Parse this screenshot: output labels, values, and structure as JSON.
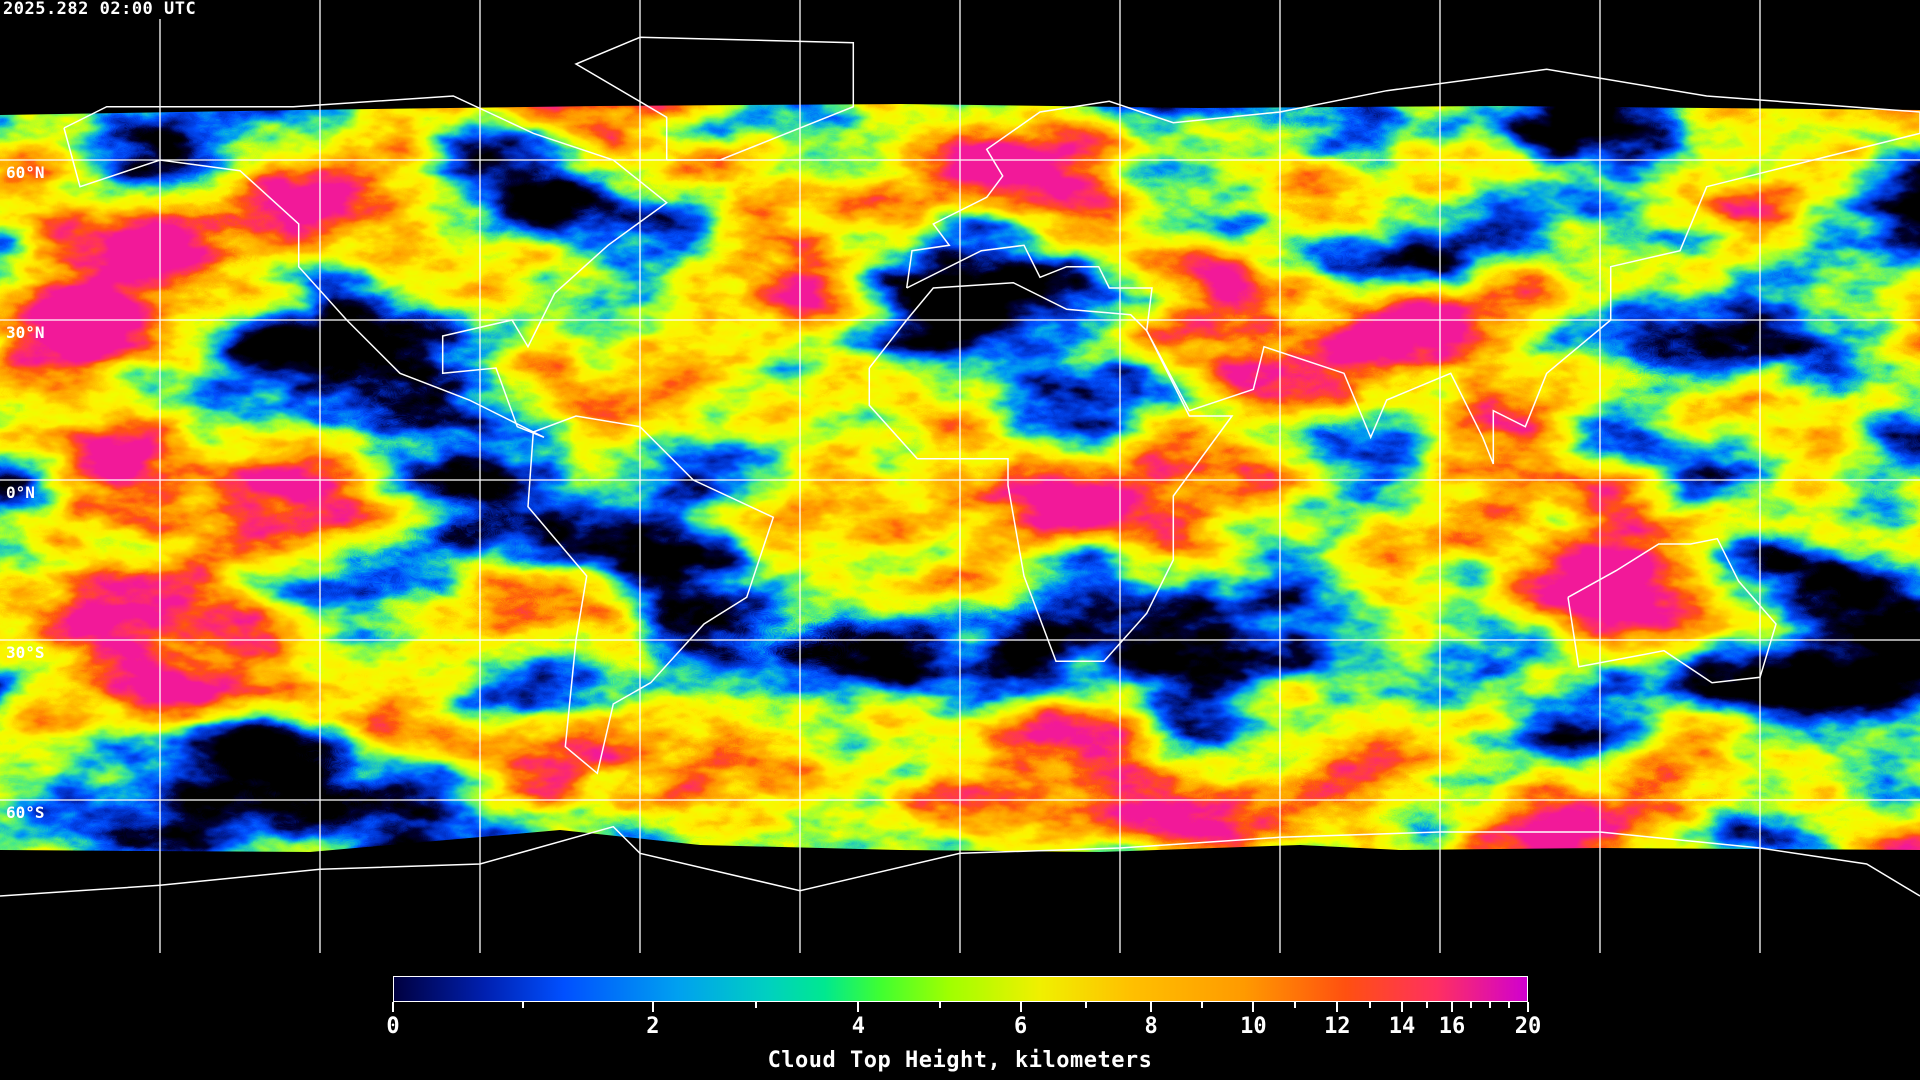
{
  "header": {
    "timestamp": "2025.282 02:00 UTC"
  },
  "map": {
    "projection": "equirectangular",
    "lon_range": [
      -180,
      180
    ],
    "lat_range": [
      -90,
      90
    ],
    "grid_spacing_degrees": 30,
    "gridline_color": "#ffffff",
    "coastline_color": "#ffffff",
    "no_data_color": "#000000",
    "lat_labels": [
      "60°N",
      "30°N",
      "0°N",
      "30°S",
      "60°S"
    ]
  },
  "colorbar": {
    "title": "Cloud Top Height, kilometers",
    "range": [
      0,
      20
    ],
    "major_ticks": [
      {
        "value": 0,
        "label": "0"
      },
      {
        "value": 2,
        "label": "2"
      },
      {
        "value": 4,
        "label": "4"
      },
      {
        "value": 6,
        "label": "6"
      },
      {
        "value": 8,
        "label": "8"
      },
      {
        "value": 10,
        "label": "10"
      },
      {
        "value": 12,
        "label": "12"
      },
      {
        "value": 14,
        "label": "14"
      },
      {
        "value": 16,
        "label": "16"
      },
      {
        "value": 20,
        "label": "20"
      }
    ],
    "minor_ticks": [
      1,
      3,
      5,
      7,
      9,
      11,
      13,
      15,
      17,
      18,
      19
    ],
    "colors": [
      "#000040",
      "#0050ff",
      "#00a0f0",
      "#00e890",
      "#40ff30",
      "#a0ff00",
      "#f0f000",
      "#ffc000",
      "#ff9a00",
      "#ff5010",
      "#ff3060",
      "#d000d0"
    ]
  }
}
